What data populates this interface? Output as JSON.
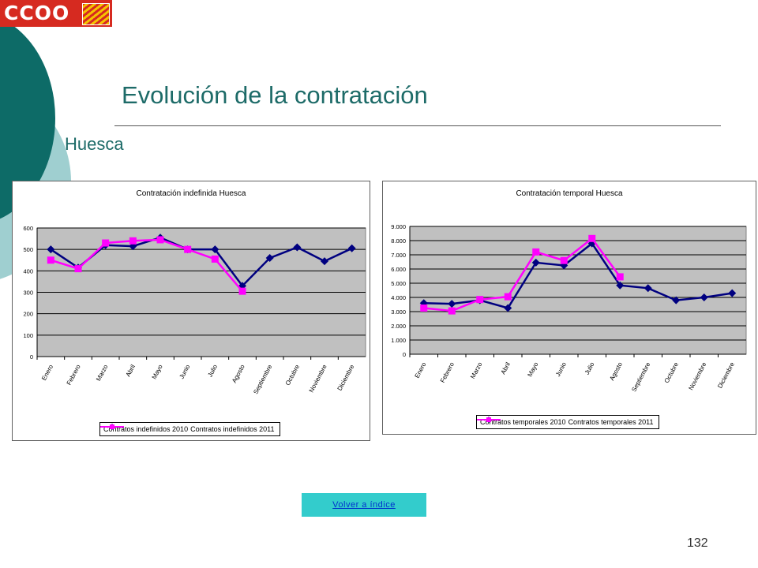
{
  "brand": {
    "logo_text": "CCOO",
    "primary_color": "#d62a20",
    "accent_color": "#f5c400"
  },
  "slide": {
    "title": "Evolución de la contratación",
    "subtitle": "Huesca",
    "back_link": "Volver a índice",
    "page_number": "132",
    "title_color": "#1d6b68"
  },
  "chart_data": [
    {
      "type": "line",
      "title": "Contratación indefinida Huesca",
      "categories": [
        "Enero",
        "Febrero",
        "Marzo",
        "Abril",
        "Mayo",
        "Junio",
        "Julio",
        "Agosto",
        "Septiembre",
        "Octubre",
        "Noviembre",
        "Diciembre"
      ],
      "y_ticks": [
        "0",
        "100",
        "200",
        "300",
        "400",
        "500",
        "600"
      ],
      "ylim": [
        0,
        600
      ],
      "grid": true,
      "plot_background": "#c0c0c0",
      "legend_position": "bottom",
      "series": [
        {
          "name": "Contratos indefinidos 2010",
          "color": "#000080",
          "marker": "diamond",
          "values": [
            500,
            415,
            520,
            515,
            555,
            500,
            500,
            330,
            460,
            510,
            445,
            505
          ]
        },
        {
          "name": "Contratos indefinidos 2011",
          "color": "#ff00ff",
          "marker": "square",
          "values": [
            450,
            410,
            530,
            540,
            545,
            500,
            455,
            305,
            null,
            null,
            null,
            null
          ]
        }
      ]
    },
    {
      "type": "line",
      "title": "Contratación temporal Huesca",
      "categories": [
        "Enero",
        "Febrero",
        "Marzo",
        "Abril",
        "Mayo",
        "Junio",
        "Julio",
        "Agosto",
        "Septiembre",
        "Octubre",
        "Noviembre",
        "Diciembre"
      ],
      "y_ticks": [
        "0",
        "1.000",
        "2.000",
        "3.000",
        "4.000",
        "5.000",
        "6.000",
        "7.000",
        "8.000",
        "9.000"
      ],
      "ylim": [
        0,
        9000
      ],
      "grid": true,
      "plot_background": "#c0c0c0",
      "legend_position": "bottom",
      "series": [
        {
          "name": "Contratos temporales 2010",
          "color": "#000080",
          "marker": "diamond",
          "values": [
            3600,
            3550,
            3800,
            3250,
            6450,
            6250,
            7800,
            4850,
            4650,
            3800,
            4000,
            4300
          ]
        },
        {
          "name": "Contratos temporales 2011",
          "color": "#ff00ff",
          "marker": "square",
          "values": [
            3250,
            3050,
            3850,
            4050,
            7200,
            6600,
            8150,
            5450,
            null,
            null,
            null,
            null
          ]
        }
      ]
    }
  ]
}
